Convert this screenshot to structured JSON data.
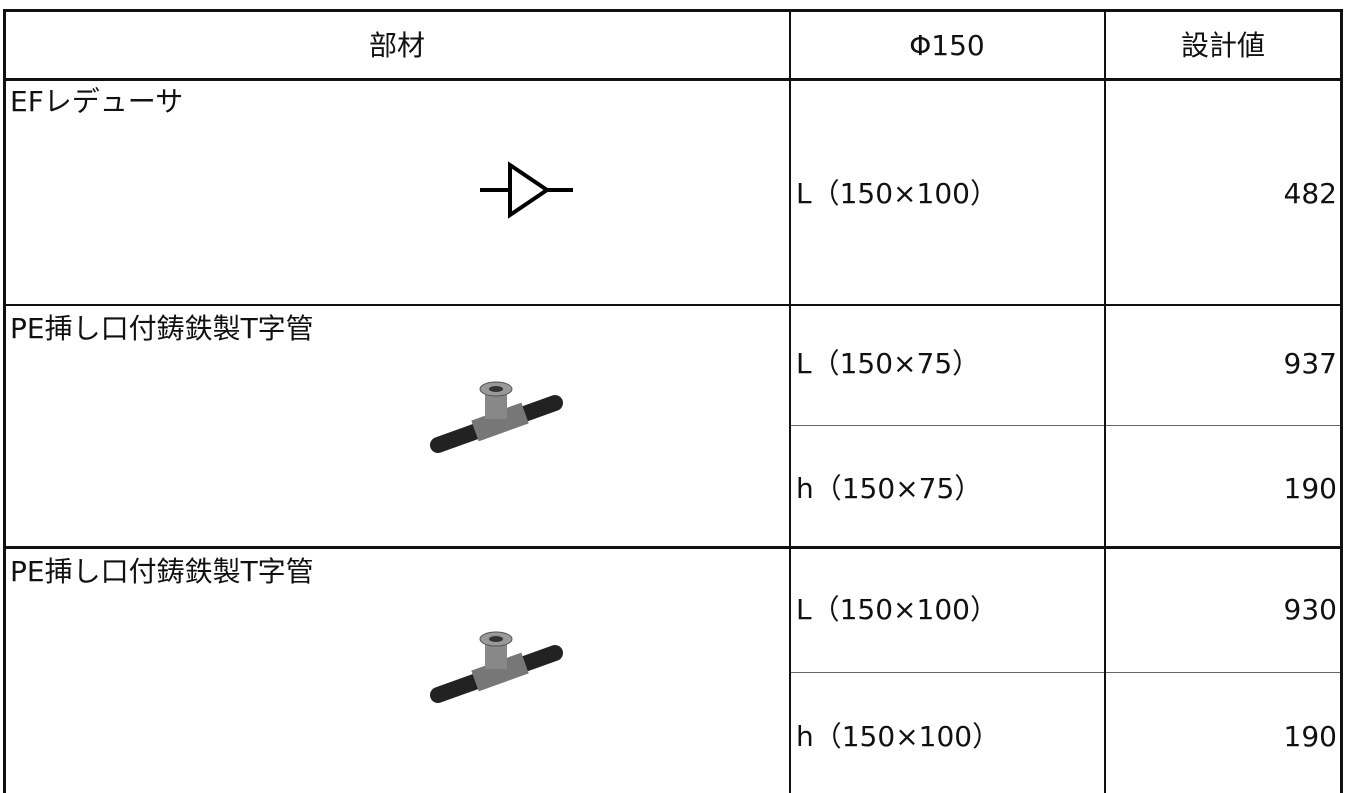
{
  "table": {
    "header": [
      "部材",
      "Φ150",
      "設計値"
    ],
    "rows": [
      {
        "part": "EFレデューサ",
        "items": [
          {
            "dim": "L（150×100）",
            "value": 482
          }
        ]
      },
      {
        "part": "PE挿し口付鋳鉄製T字管",
        "items": [
          {
            "dim": "L（150×75）",
            "value": 937
          },
          {
            "dim": "h（150×75）",
            "value": 190
          }
        ]
      },
      {
        "part": "PE挿し口付鋳鉄製T字管",
        "items": [
          {
            "dim": "L（150×100）",
            "value": 930
          },
          {
            "dim": "h（150×100）",
            "value": 190
          }
        ]
      }
    ]
  }
}
